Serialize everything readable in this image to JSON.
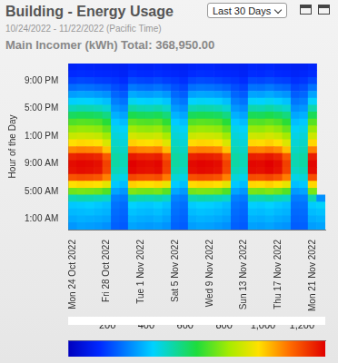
{
  "chart_data": {
    "type": "heatmap",
    "title": "Building - Energy Usage",
    "subtitle": "10/24/2022 - 11/22/2022 (Pacific Time)",
    "annotations": {
      "total": "Main Incomer (kWh) Total: 368,950.00",
      "period": "Last 30 Days"
    },
    "y_label": "Hour of the Day",
    "grid": false,
    "categories": [
      "Mon 24 Oct 2022",
      null,
      null,
      null,
      "Fri 28 Oct 2022",
      null,
      null,
      null,
      "Tue 1 Nov 2022",
      null,
      null,
      null,
      "Sat 5 Nov 2022",
      null,
      null,
      null,
      "Wed 9 Nov 2022",
      null,
      null,
      null,
      "Sun 13 Nov 2022",
      null,
      null,
      null,
      "Thu 17 Nov 2022",
      null,
      null,
      null,
      "Mon 21 Nov 2022",
      null
    ],
    "ylim": [
      -0.5,
      23.5
    ],
    "yticks": [
      {
        "value": 1,
        "label": "1:00 AM"
      },
      {
        "value": 5,
        "label": "5:00 AM"
      },
      {
        "value": 9,
        "label": "9:00 AM"
      },
      {
        "value": 13,
        "label": "1:00 PM"
      },
      {
        "value": 17,
        "label": "5:00 PM"
      },
      {
        "value": 21,
        "label": "9:00 PM"
      }
    ],
    "values": [
      [
        340,
        355,
        350,
        345,
        330,
        250,
        240,
        360,
        350,
        345,
        350,
        335,
        255,
        245,
        350,
        360,
        355,
        345,
        330,
        250,
        240,
        355,
        350,
        360,
        345,
        335,
        245,
        250,
        350,
        360
      ],
      [
        370,
        380,
        375,
        370,
        360,
        260,
        250,
        385,
        375,
        370,
        380,
        360,
        265,
        255,
        375,
        385,
        380,
        370,
        355,
        260,
        250,
        380,
        375,
        385,
        370,
        360,
        255,
        260,
        375,
        385
      ],
      [
        395,
        400,
        405,
        395,
        385,
        270,
        260,
        410,
        400,
        395,
        405,
        385,
        275,
        265,
        400,
        410,
        405,
        395,
        380,
        270,
        260,
        405,
        400,
        410,
        395,
        385,
        265,
        270,
        400,
        410
      ],
      [
        420,
        425,
        430,
        420,
        405,
        280,
        270,
        435,
        425,
        420,
        430,
        410,
        285,
        275,
        425,
        435,
        430,
        420,
        400,
        280,
        270,
        430,
        425,
        435,
        420,
        405,
        275,
        280,
        425,
        440
      ],
      [
        520,
        530,
        525,
        515,
        500,
        300,
        290,
        540,
        525,
        520,
        530,
        505,
        305,
        295,
        525,
        535,
        530,
        520,
        500,
        300,
        290,
        530,
        525,
        540,
        520,
        505,
        295,
        300,
        530,
        330
      ],
      [
        760,
        770,
        765,
        755,
        720,
        360,
        340,
        780,
        765,
        760,
        770,
        730,
        365,
        345,
        765,
        775,
        770,
        760,
        720,
        360,
        340,
        770,
        765,
        780,
        760,
        725,
        345,
        360,
        770,
        null
      ],
      [
        980,
        990,
        985,
        975,
        930,
        420,
        400,
        1000,
        985,
        980,
        990,
        940,
        425,
        405,
        985,
        995,
        990,
        980,
        930,
        420,
        400,
        990,
        985,
        1000,
        980,
        935,
        405,
        420,
        990,
        null
      ],
      [
        1180,
        1190,
        1185,
        1175,
        1110,
        480,
        460,
        1200,
        1185,
        1180,
        1190,
        1120,
        485,
        465,
        1185,
        1195,
        1190,
        1180,
        1110,
        480,
        460,
        1190,
        1185,
        1200,
        1180,
        1115,
        465,
        480,
        1190,
        null
      ],
      [
        1290,
        1300,
        1295,
        1285,
        1200,
        520,
        500,
        1310,
        1295,
        1290,
        1300,
        1210,
        525,
        505,
        1295,
        1305,
        1300,
        1290,
        1200,
        520,
        500,
        1300,
        1295,
        1310,
        1290,
        1205,
        505,
        520,
        1300,
        null
      ],
      [
        1300,
        1310,
        1305,
        1295,
        1210,
        540,
        520,
        1320,
        1305,
        1300,
        1310,
        1220,
        545,
        525,
        1305,
        1315,
        1310,
        1300,
        1210,
        540,
        520,
        1310,
        1305,
        1320,
        1300,
        1215,
        525,
        540,
        1310,
        null
      ],
      [
        1260,
        1270,
        1265,
        1255,
        1170,
        540,
        520,
        1280,
        1265,
        1260,
        1270,
        1180,
        545,
        525,
        1265,
        1275,
        1270,
        1260,
        1170,
        540,
        520,
        1270,
        1265,
        1280,
        1260,
        1175,
        525,
        540,
        1270,
        null
      ],
      [
        1100,
        1110,
        1105,
        1095,
        1020,
        520,
        500,
        1120,
        1105,
        1100,
        1110,
        1030,
        525,
        505,
        1105,
        1115,
        1110,
        1100,
        1020,
        520,
        500,
        1110,
        1105,
        1120,
        1100,
        1025,
        505,
        520,
        1110,
        null
      ],
      [
        980,
        990,
        985,
        975,
        910,
        500,
        480,
        1000,
        985,
        980,
        990,
        920,
        505,
        485,
        985,
        995,
        990,
        980,
        910,
        500,
        480,
        990,
        985,
        1000,
        980,
        915,
        485,
        500,
        990,
        null
      ],
      [
        880,
        890,
        885,
        875,
        820,
        480,
        460,
        900,
        885,
        880,
        890,
        830,
        485,
        465,
        885,
        895,
        890,
        880,
        820,
        480,
        460,
        890,
        885,
        900,
        880,
        825,
        465,
        480,
        890,
        null
      ],
      [
        800,
        810,
        805,
        795,
        745,
        460,
        440,
        820,
        805,
        800,
        810,
        755,
        465,
        445,
        805,
        815,
        810,
        800,
        745,
        460,
        440,
        810,
        805,
        820,
        800,
        750,
        445,
        460,
        810,
        null
      ],
      [
        720,
        730,
        725,
        715,
        670,
        420,
        400,
        740,
        725,
        720,
        730,
        680,
        425,
        405,
        725,
        735,
        730,
        720,
        670,
        420,
        400,
        730,
        725,
        740,
        720,
        675,
        405,
        420,
        730,
        null
      ],
      [
        620,
        630,
        625,
        615,
        580,
        380,
        360,
        640,
        625,
        620,
        630,
        590,
        385,
        365,
        625,
        635,
        630,
        620,
        580,
        380,
        360,
        630,
        625,
        640,
        620,
        585,
        365,
        380,
        630,
        null
      ],
      [
        520,
        530,
        525,
        515,
        490,
        340,
        320,
        540,
        525,
        520,
        530,
        500,
        345,
        325,
        525,
        535,
        530,
        520,
        490,
        340,
        320,
        530,
        525,
        540,
        520,
        495,
        325,
        340,
        530,
        null
      ],
      [
        430,
        440,
        435,
        425,
        405,
        300,
        280,
        450,
        435,
        430,
        440,
        415,
        305,
        285,
        435,
        445,
        440,
        430,
        405,
        300,
        280,
        440,
        435,
        450,
        430,
        410,
        285,
        300,
        440,
        null
      ],
      [
        350,
        360,
        355,
        345,
        330,
        260,
        240,
        370,
        355,
        350,
        360,
        340,
        265,
        245,
        355,
        365,
        360,
        350,
        330,
        260,
        240,
        360,
        355,
        370,
        350,
        335,
        245,
        260,
        360,
        null
      ],
      [
        270,
        280,
        275,
        265,
        255,
        220,
        200,
        290,
        275,
        270,
        280,
        260,
        225,
        205,
        275,
        285,
        280,
        270,
        255,
        220,
        200,
        280,
        275,
        290,
        270,
        260,
        205,
        220,
        280,
        null
      ],
      [
        200,
        210,
        205,
        195,
        190,
        180,
        165,
        215,
        205,
        200,
        210,
        195,
        185,
        170,
        205,
        215,
        210,
        200,
        190,
        180,
        165,
        210,
        205,
        215,
        200,
        195,
        170,
        180,
        210,
        null
      ],
      [
        160,
        165,
        162,
        158,
        155,
        150,
        140,
        170,
        162,
        160,
        165,
        157,
        152,
        142,
        162,
        168,
        165,
        160,
        155,
        150,
        140,
        165,
        162,
        170,
        160,
        156,
        142,
        150,
        165,
        null
      ],
      [
        140,
        145,
        142,
        138,
        136,
        130,
        125,
        148,
        142,
        140,
        145,
        137,
        132,
        127,
        142,
        146,
        145,
        140,
        136,
        130,
        125,
        145,
        142,
        148,
        140,
        137,
        127,
        130,
        145,
        null
      ]
    ],
    "colorbar": {
      "range": [
        0,
        1320
      ],
      "ticks": [
        200,
        400,
        600,
        800,
        {
          "value": 1000,
          "label": "1,000"
        },
        {
          "value": 1200,
          "label": "1,200"
        }
      ]
    }
  }
}
